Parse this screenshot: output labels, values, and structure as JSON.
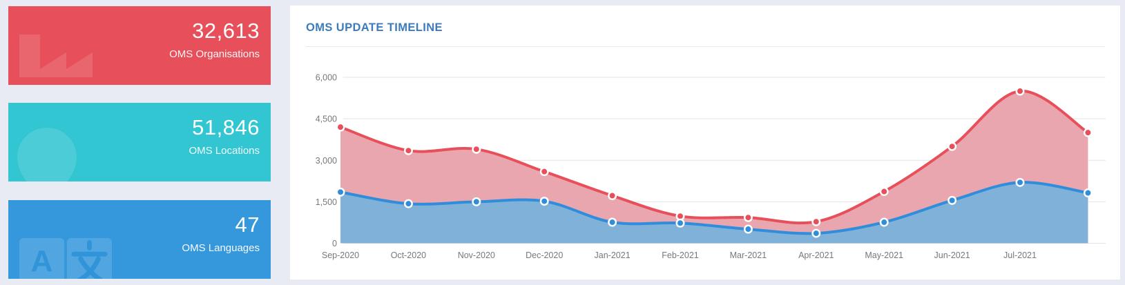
{
  "page": {
    "background": "#e9ebf4"
  },
  "stat_cards": [
    {
      "value": "32,613",
      "label": "OMS Organisations",
      "color": "#e7505a",
      "icon": "factory-icon"
    },
    {
      "value": "51,846",
      "label": "OMS Locations",
      "color": "#32c5d2",
      "icon": "location-pin-icon"
    },
    {
      "value": "47",
      "label": "OMS Languages",
      "color": "#3598dc",
      "icon": "translate-icon"
    }
  ],
  "panel": {
    "title": "OMS UPDATE TIMELINE",
    "title_color": "#3c7cbc"
  },
  "chart_data": {
    "type": "area",
    "title": "OMS UPDATE TIMELINE",
    "categories": [
      "Sep-2020",
      "Oct-2020",
      "Nov-2020",
      "Dec-2020",
      "Jan-2021",
      "Feb-2021",
      "Mar-2021",
      "Apr-2021",
      "May-2021",
      "Jun-2021",
      "Jul-2021",
      ""
    ],
    "series": [
      {
        "name": "red-series",
        "line_color": "#e7505a",
        "fill_color": "#e9a6ae",
        "values": [
          4200,
          3350,
          3400,
          2590,
          1720,
          980,
          930,
          780,
          1870,
          3500,
          5500,
          4000
        ]
      },
      {
        "name": "blue-series",
        "line_color": "#2f8ddc",
        "fill_color": "#7fb1d9",
        "values": [
          1850,
          1430,
          1500,
          1520,
          760,
          730,
          510,
          360,
          760,
          1550,
          2200,
          1820
        ]
      }
    ],
    "ylim": [
      0,
      6000
    ],
    "yticks": [
      0,
      1500,
      3000,
      4500,
      6000
    ],
    "ytick_labels": [
      "0",
      "1,500",
      "3,000",
      "4,500",
      "6,000"
    ],
    "grid": true,
    "legend": "none",
    "smooth": true,
    "axis_text_color": "#77777d",
    "grid_color": "#e3e3e3"
  }
}
